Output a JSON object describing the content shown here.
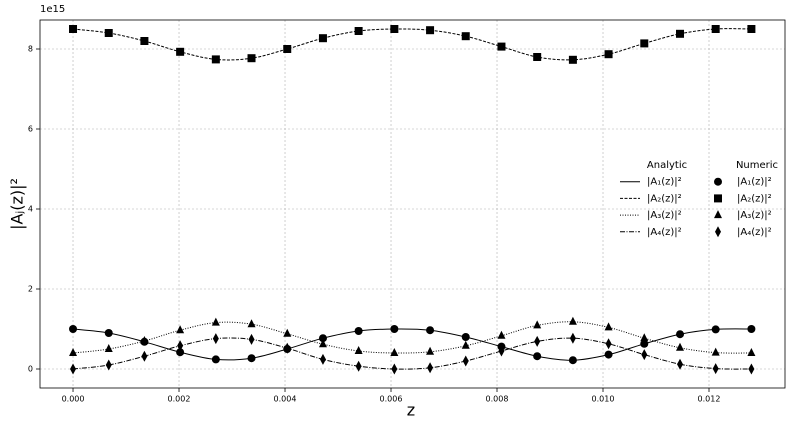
{
  "chart_data": {
    "type": "line",
    "offset_text": "1e15",
    "xlabel": "z",
    "ylabel": "|Aⱼ(z)|²",
    "x": [
      0,
      0.000674,
      0.001347,
      0.002021,
      0.002695,
      0.003368,
      0.004042,
      0.004716,
      0.005389,
      0.006063,
      0.006737,
      0.00741,
      0.008084,
      0.008758,
      0.009432,
      0.010105,
      0.010779,
      0.011453,
      0.012126,
      0.0128
    ],
    "xlim": [
      -0.000623,
      0.013434
    ],
    "xticks": [
      {
        "value": 0,
        "label": "0.000"
      },
      {
        "value": 0.002,
        "label": "0.002"
      },
      {
        "value": 0.004,
        "label": "0.004"
      },
      {
        "value": 0.006,
        "label": "0.006"
      },
      {
        "value": 0.008,
        "label": "0.008"
      },
      {
        "value": 0.01,
        "label": "0.010"
      },
      {
        "value": 0.012,
        "label": "0.012"
      }
    ],
    "ylim": [
      -0.475,
      8.725
    ],
    "yticks": [
      0,
      2,
      4,
      6,
      8
    ],
    "grid": true,
    "legend_titles": [
      "Analytic",
      "Numeric"
    ],
    "series": [
      {
        "name": "|A₁(z)|²",
        "group": "Analytic",
        "style": "solid",
        "color": "#000000",
        "values": [
          1.0,
          0.9,
          0.68,
          0.42,
          0.24,
          0.27,
          0.5,
          0.77,
          0.95,
          1.0,
          0.97,
          0.8,
          0.56,
          0.32,
          0.22,
          0.36,
          0.63,
          0.87,
          0.99,
          1.0
        ]
      },
      {
        "name": "|A₂(z)|²",
        "group": "Analytic",
        "style": "dashed",
        "color": "#000000",
        "values": [
          8.5,
          8.4,
          8.2,
          7.93,
          7.74,
          7.77,
          8.0,
          8.27,
          8.45,
          8.5,
          8.47,
          8.32,
          8.06,
          7.8,
          7.73,
          7.87,
          8.14,
          8.38,
          8.5,
          8.5
        ]
      },
      {
        "name": "|A₃(z)|²",
        "group": "Analytic",
        "style": "dotted",
        "color": "#000000",
        "values": [
          0.4,
          0.5,
          0.7,
          0.97,
          1.16,
          1.12,
          0.88,
          0.62,
          0.45,
          0.4,
          0.43,
          0.58,
          0.83,
          1.09,
          1.18,
          1.04,
          0.77,
          0.53,
          0.41,
          0.4
        ]
      },
      {
        "name": "|A₄(z)|²",
        "group": "Analytic",
        "style": "dashdot",
        "color": "#000000",
        "values": [
          0.0,
          0.1,
          0.32,
          0.58,
          0.76,
          0.74,
          0.52,
          0.24,
          0.07,
          0.0,
          0.03,
          0.2,
          0.45,
          0.69,
          0.77,
          0.63,
          0.36,
          0.12,
          0.01,
          0.0
        ]
      },
      {
        "name": "|A₁(z)|²",
        "group": "Numeric",
        "marker": "circle",
        "color": "#000000",
        "values": [
          1.0,
          0.9,
          0.68,
          0.42,
          0.24,
          0.27,
          0.5,
          0.77,
          0.95,
          1.0,
          0.97,
          0.8,
          0.56,
          0.32,
          0.22,
          0.36,
          0.63,
          0.87,
          0.99,
          1.0
        ]
      },
      {
        "name": "|A₂(z)|²",
        "group": "Numeric",
        "marker": "square",
        "color": "#000000",
        "values": [
          8.5,
          8.4,
          8.2,
          7.93,
          7.74,
          7.77,
          8.0,
          8.27,
          8.45,
          8.5,
          8.47,
          8.32,
          8.06,
          7.8,
          7.73,
          7.87,
          8.14,
          8.38,
          8.5,
          8.5
        ]
      },
      {
        "name": "|A₃(z)|²",
        "group": "Numeric",
        "marker": "triangle",
        "color": "#000000",
        "values": [
          0.4,
          0.5,
          0.7,
          0.97,
          1.16,
          1.12,
          0.88,
          0.62,
          0.45,
          0.4,
          0.43,
          0.58,
          0.83,
          1.09,
          1.18,
          1.04,
          0.77,
          0.53,
          0.41,
          0.4
        ]
      },
      {
        "name": "|A₄(z)|²",
        "group": "Numeric",
        "marker": "diamond",
        "color": "#000000",
        "values": [
          0.0,
          0.1,
          0.32,
          0.58,
          0.76,
          0.74,
          0.52,
          0.24,
          0.07,
          0.0,
          0.03,
          0.2,
          0.45,
          0.69,
          0.77,
          0.63,
          0.36,
          0.12,
          0.01,
          0.0
        ]
      }
    ]
  }
}
